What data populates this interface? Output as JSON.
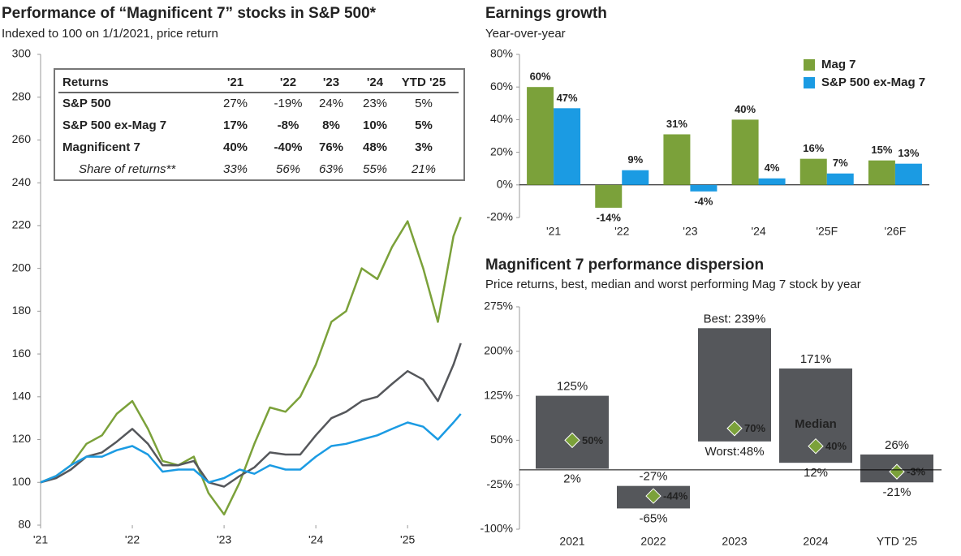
{
  "chart_data": [
    {
      "type": "line",
      "title": "Performance of “Magnificent 7” stocks in S&P 500*",
      "subtitle": "Indexed to 100 on 1/1/2021, price return",
      "x": [
        2021,
        2021.17,
        2021.33,
        2021.5,
        2021.67,
        2021.83,
        2022,
        2022.17,
        2022.33,
        2022.5,
        2022.67,
        2022.83,
        2023,
        2023.17,
        2023.33,
        2023.5,
        2023.67,
        2023.83,
        2024,
        2024.17,
        2024.33,
        2024.5,
        2024.67,
        2024.83,
        2025,
        2025.17,
        2025.33,
        2025.5,
        2025.58
      ],
      "xlim": [
        2021,
        2025.6
      ],
      "xticks": [
        {
          "value": 2021,
          "label": "'21"
        },
        {
          "value": 2022,
          "label": "'22"
        },
        {
          "value": 2023,
          "label": "'23"
        },
        {
          "value": 2024,
          "label": "'24"
        },
        {
          "value": 2025,
          "label": "'25"
        }
      ],
      "ylim": [
        80,
        300
      ],
      "yticks": [
        80,
        100,
        120,
        140,
        160,
        180,
        200,
        220,
        240,
        260,
        280,
        300
      ],
      "series": [
        {
          "color": "#7ba13a",
          "values": [
            100,
            103,
            108,
            118,
            122,
            132,
            138,
            125,
            110,
            108,
            112,
            95,
            85,
            100,
            118,
            135,
            133,
            140,
            155,
            175,
            180,
            200,
            195,
            210,
            222,
            200,
            175,
            215,
            224
          ]
        },
        {
          "color": "#55575b",
          "values": [
            100,
            102,
            106,
            112,
            114,
            119,
            125,
            118,
            108,
            108,
            110,
            100,
            98,
            103,
            107,
            114,
            113,
            113,
            122,
            130,
            133,
            138,
            140,
            146,
            152,
            148,
            138,
            155,
            165
          ]
        },
        {
          "color": "#1b9be3",
          "values": [
            100,
            103,
            108,
            112,
            112,
            115,
            117,
            113,
            105,
            106,
            106,
            100,
            102,
            106,
            104,
            108,
            106,
            106,
            112,
            117,
            118,
            120,
            122,
            125,
            128,
            126,
            120,
            128,
            132
          ]
        }
      ],
      "table": {
        "columns": [
          "Returns",
          "'21",
          "'22",
          "'23",
          "'24",
          "YTD '25"
        ],
        "rows": [
          [
            "S&P 500",
            "27%",
            "-19%",
            "24%",
            "23%",
            "5%"
          ],
          [
            "S&P 500 ex-Mag 7",
            "17%",
            "-8%",
            "8%",
            "10%",
            "5%"
          ],
          [
            "Magnificent 7",
            "40%",
            "-40%",
            "76%",
            "48%",
            "3%"
          ],
          [
            "Share of returns**",
            "33%",
            "56%",
            "63%",
            "55%",
            "21%"
          ]
        ]
      }
    },
    {
      "type": "bar",
      "title": "Earnings growth",
      "subtitle": "Year-over-year",
      "categories": [
        "'21",
        "'22",
        "'23",
        "'24",
        "'25F",
        "'26F"
      ],
      "ylim": [
        -20,
        80
      ],
      "yticks": [
        {
          "value": -20,
          "label": "-20%"
        },
        {
          "value": 0,
          "label": "0%"
        },
        {
          "value": 20,
          "label": "20%"
        },
        {
          "value": 40,
          "label": "40%"
        },
        {
          "value": 60,
          "label": "60%"
        },
        {
          "value": 80,
          "label": "80%"
        }
      ],
      "legend": "top-right",
      "series": [
        {
          "name": "Mag 7",
          "color": "#7ba13a",
          "values": [
            60,
            -14,
            31,
            40,
            16,
            15
          ],
          "value_labels": [
            "60%",
            "-14%",
            "31%",
            "40%",
            "16%",
            "15%"
          ]
        },
        {
          "name": "S&P 500 ex-Mag 7",
          "color": "#1b9be3",
          "values": [
            47,
            9,
            -4,
            4,
            7,
            13
          ],
          "value_labels": [
            "47%",
            "9%",
            "-4%",
            "4%",
            "7%",
            "13%"
          ]
        }
      ]
    },
    {
      "type": "floating-bar",
      "title": "Magnificent 7 performance dispersion",
      "subtitle": "Price returns, best, median and worst performing Mag 7 stock by year",
      "categories": [
        "2021",
        "2022",
        "2023",
        "2024",
        "YTD '25"
      ],
      "ylim": [
        -100,
        275
      ],
      "yticks": [
        {
          "value": -100,
          "label": "-100%"
        },
        {
          "value": -25,
          "label": "-25%"
        },
        {
          "value": 50,
          "label": "50%"
        },
        {
          "value": 125,
          "label": "125%"
        },
        {
          "value": 200,
          "label": "200%"
        },
        {
          "value": 275,
          "label": "275%"
        }
      ],
      "bar_color": "#55575b",
      "high": {
        "values": [
          125,
          -27,
          239,
          171,
          26
        ],
        "value_labels": [
          "125%",
          "-27%",
          "Best: 239%",
          "171%",
          "26%"
        ]
      },
      "low": {
        "values": [
          2,
          -65,
          48,
          12,
          -21
        ],
        "value_labels": [
          "2%",
          "-65%",
          "Worst:48%",
          "12%",
          "-21%"
        ]
      },
      "median": {
        "color": "#7ba13a",
        "values": [
          50,
          -44,
          70,
          40,
          -3
        ],
        "value_labels": [
          "50%",
          "-44%",
          "70%",
          "40%",
          "-3%"
        ]
      },
      "annotation": "Median"
    }
  ]
}
